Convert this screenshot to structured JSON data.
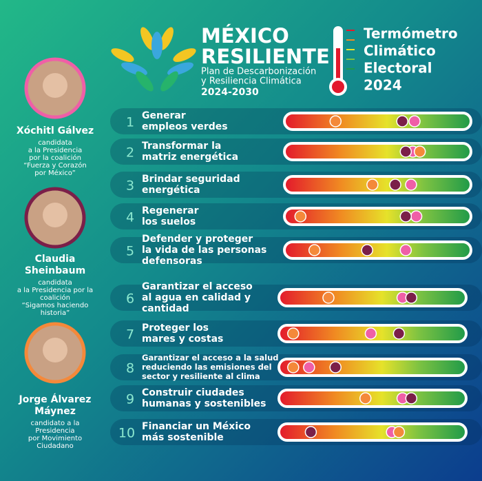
{
  "header": {
    "logo_lines": [
      "MÉXICO",
      "RESILIENTE"
    ],
    "plan_lines": [
      "Plan de Descarbonización",
      "y Resiliencia Climática"
    ],
    "period": "2024-2030",
    "title_lines": [
      "Termómetro",
      "Climático",
      "Electoral",
      "2024"
    ]
  },
  "scale": [
    0,
    100
  ],
  "candidates": [
    {
      "name_lines": [
        "Xóchitl Gálvez"
      ],
      "desc_lines": [
        "candidata",
        "a la Presidencia",
        "por la coalición",
        "“Fuerza y Corazón",
        "por México”"
      ],
      "color": "#ef5fa7"
    },
    {
      "name_lines": [
        "Claudia",
        "Sheinbaum"
      ],
      "desc_lines": [
        "candidata",
        "a la Presidencia por la",
        "coalición",
        "“Sigamos haciendo",
        "historia”"
      ],
      "color": "#7b1f49"
    },
    {
      "name_lines": [
        "Jorge Álvarez",
        "Máynez"
      ],
      "desc_lines": [
        "candidato a la",
        "Presidencia",
        "por Movimiento",
        "Ciudadano"
      ],
      "color": "#f4893a"
    }
  ],
  "items": [
    {
      "number": "1",
      "label_lines": [
        "Generar",
        "empleos verdes"
      ],
      "scores": [
        71,
        64,
        26
      ]
    },
    {
      "number": "2",
      "label_lines": [
        "Transformar la",
        "matriz energética"
      ],
      "scores": [
        70,
        66,
        74
      ]
    },
    {
      "number": "3",
      "label_lines": [
        "Brindar seguridad",
        "energética"
      ],
      "scores": [
        69,
        60,
        47
      ]
    },
    {
      "number": "4",
      "label_lines": [
        "Regenerar",
        "los suelos"
      ],
      "scores": [
        72,
        66,
        6
      ]
    },
    {
      "number": "5",
      "label_lines": [
        "Defender y proteger",
        "la vida de las personas",
        "defensoras"
      ],
      "scores": [
        66,
        44,
        14
      ]
    },
    {
      "number": "6",
      "label_lines": [
        "Garantizar el acceso",
        "al agua en calidad y",
        "cantidad"
      ],
      "scores": [
        67,
        72,
        25
      ]
    },
    {
      "number": "7",
      "label_lines": [
        "Proteger los",
        "mares y costas"
      ],
      "scores": [
        49,
        65,
        5
      ]
    },
    {
      "number": "8",
      "label_lines": [
        "Garantizar el acceso a la salud",
        "reduciendo las emisiones del",
        "sector y resiliente al clima"
      ],
      "scores": [
        14,
        29,
        5
      ]
    },
    {
      "number": "9",
      "label_lines": [
        "Construir ciudades",
        "humanas y sostenibles"
      ],
      "scores": [
        67,
        72,
        46
      ]
    },
    {
      "number": "10",
      "label_lines": [
        "Financiar un México",
        "más sostenible"
      ],
      "scores": [
        61,
        15,
        65
      ]
    }
  ]
}
